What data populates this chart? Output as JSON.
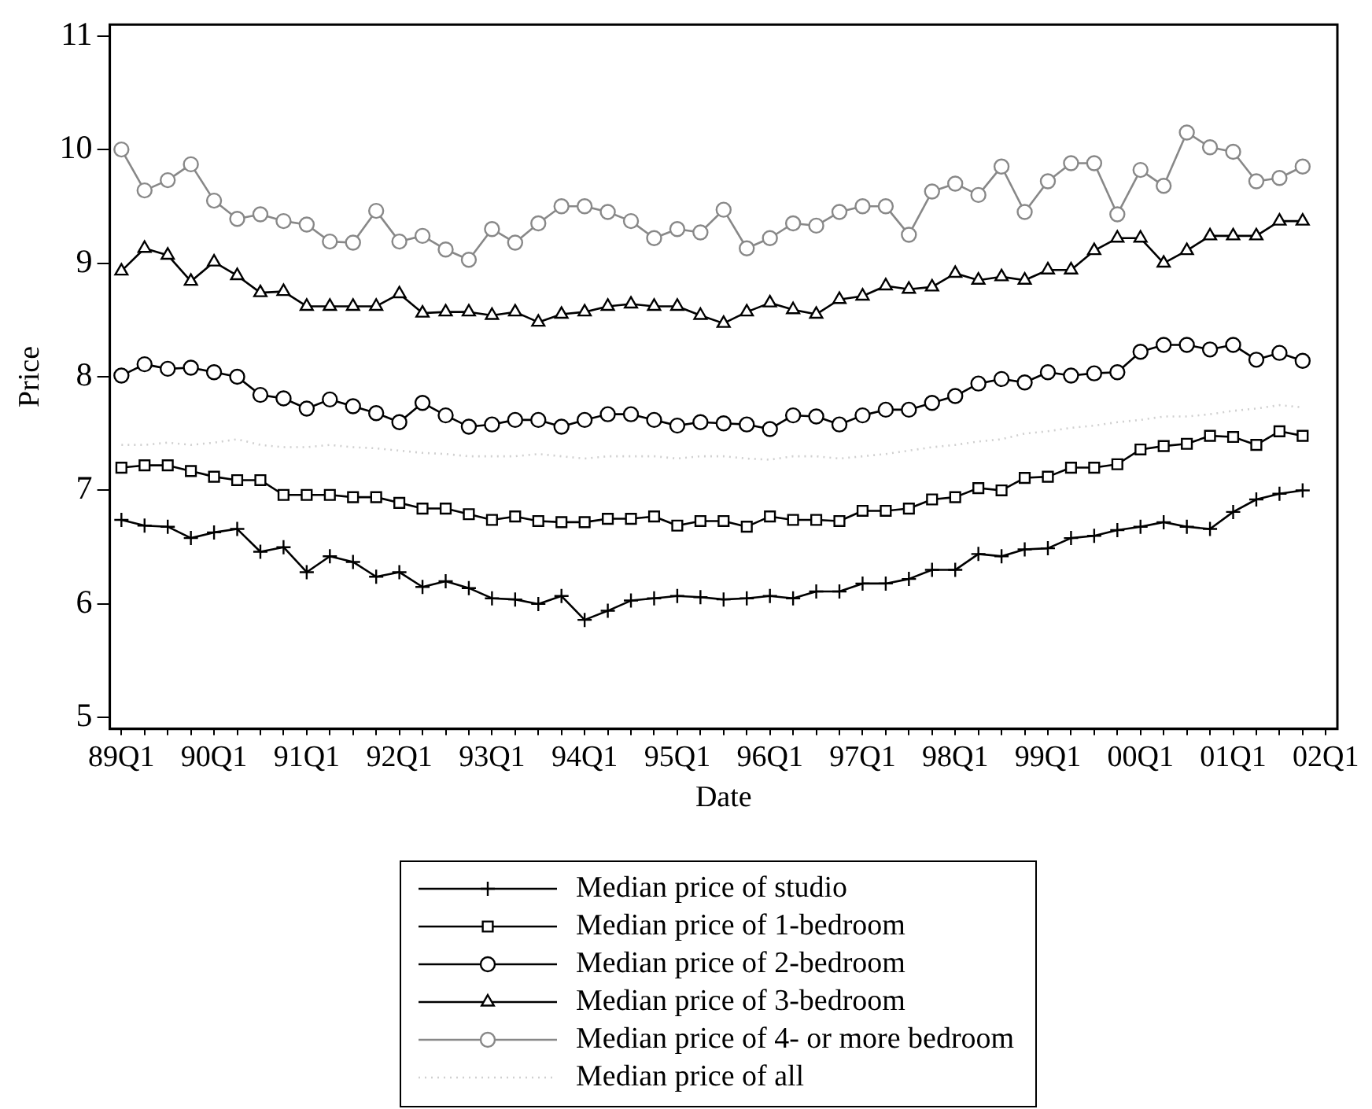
{
  "chart_data": {
    "type": "line",
    "xlabel": "Date",
    "ylabel": "Price",
    "legend": "bottom",
    "grid": false,
    "categories": [
      "89Q1",
      null,
      null,
      null,
      "90Q1",
      null,
      null,
      null,
      "91Q1",
      null,
      null,
      null,
      "92Q1",
      null,
      null,
      null,
      "93Q1",
      null,
      null,
      null,
      "94Q1",
      null,
      null,
      null,
      "95Q1",
      null,
      null,
      null,
      "96Q1",
      null,
      null,
      null,
      "97Q1",
      null,
      null,
      null,
      "98Q1",
      null,
      null,
      null,
      "99Q1",
      null,
      null,
      null,
      "00Q1",
      null,
      null,
      null,
      "01Q1",
      null,
      null,
      null,
      "02Q1"
    ],
    "ylim": [
      4.9,
      11.1
    ],
    "yticks": [
      5,
      6,
      7,
      8,
      9,
      10,
      11
    ],
    "series": [
      {
        "name": "Median price of studio",
        "color": "#000000",
        "marker": "cross",
        "line_style": "solid",
        "values": [
          6.74,
          6.69,
          6.68,
          6.58,
          6.63,
          6.66,
          6.46,
          6.5,
          6.28,
          6.42,
          6.37,
          6.24,
          6.28,
          6.15,
          6.2,
          6.14,
          6.05,
          6.04,
          6.0,
          6.07,
          5.86,
          5.94,
          6.03,
          6.05,
          6.07,
          6.06,
          6.04,
          6.05,
          6.07,
          6.05,
          6.11,
          6.11,
          6.18,
          6.18,
          6.22,
          6.3,
          6.3,
          6.44,
          6.42,
          6.48,
          6.49,
          6.58,
          6.6,
          6.65,
          6.68,
          6.72,
          6.68,
          6.66,
          6.81,
          6.92,
          6.97,
          7.0,
          null
        ]
      },
      {
        "name": "Median price of 1-bedroom",
        "color": "#000000",
        "marker": "square",
        "line_style": "solid",
        "values": [
          7.2,
          7.22,
          7.22,
          7.17,
          7.12,
          7.09,
          7.09,
          6.96,
          6.96,
          6.96,
          6.94,
          6.94,
          6.89,
          6.84,
          6.84,
          6.79,
          6.74,
          6.77,
          6.73,
          6.72,
          6.72,
          6.75,
          6.75,
          6.77,
          6.69,
          6.73,
          6.73,
          6.68,
          6.77,
          6.74,
          6.74,
          6.73,
          6.82,
          6.82,
          6.84,
          6.92,
          6.94,
          7.02,
          7.0,
          7.11,
          7.12,
          7.2,
          7.2,
          7.23,
          7.36,
          7.39,
          7.41,
          7.48,
          7.47,
          7.4,
          7.52,
          7.48,
          null
        ]
      },
      {
        "name": "Median price of 2-bedroom",
        "color": "#000000",
        "marker": "circle",
        "line_style": "solid",
        "values": [
          8.01,
          8.11,
          8.07,
          8.08,
          8.04,
          8.0,
          7.84,
          7.81,
          7.72,
          7.8,
          7.74,
          7.68,
          7.6,
          7.77,
          7.66,
          7.56,
          7.58,
          7.62,
          7.62,
          7.56,
          7.62,
          7.67,
          7.67,
          7.62,
          7.57,
          7.6,
          7.59,
          7.58,
          7.54,
          7.66,
          7.65,
          7.58,
          7.66,
          7.71,
          7.71,
          7.77,
          7.83,
          7.94,
          7.98,
          7.95,
          8.04,
          8.01,
          8.03,
          8.04,
          8.22,
          8.28,
          8.28,
          8.24,
          8.28,
          8.15,
          8.21,
          8.14,
          null
        ]
      },
      {
        "name": "Median price of 3-bedroom",
        "color": "#000000",
        "marker": "triangle",
        "line_style": "solid",
        "values": [
          8.93,
          9.13,
          9.07,
          8.84,
          9.01,
          8.89,
          8.74,
          8.75,
          8.62,
          8.62,
          8.62,
          8.62,
          8.73,
          8.56,
          8.57,
          8.57,
          8.54,
          8.57,
          8.48,
          8.55,
          8.57,
          8.62,
          8.64,
          8.62,
          8.62,
          8.54,
          8.47,
          8.57,
          8.65,
          8.59,
          8.55,
          8.68,
          8.71,
          8.8,
          8.77,
          8.79,
          8.91,
          8.85,
          8.88,
          8.85,
          8.94,
          8.94,
          9.11,
          9.22,
          9.22,
          9.0,
          9.11,
          9.24,
          9.24,
          9.24,
          9.37,
          9.37,
          null
        ]
      },
      {
        "name": "Median price of 4- or more bedroom",
        "color": "#888888",
        "marker": "circle",
        "line_style": "solid",
        "values": [
          10.0,
          9.64,
          9.73,
          9.87,
          9.55,
          9.39,
          9.43,
          9.37,
          9.34,
          9.19,
          9.18,
          9.46,
          9.19,
          9.24,
          9.12,
          9.03,
          9.3,
          9.18,
          9.35,
          9.5,
          9.5,
          9.45,
          9.37,
          9.22,
          9.3,
          9.27,
          9.47,
          9.13,
          9.22,
          9.35,
          9.33,
          9.45,
          9.5,
          9.5,
          9.25,
          9.63,
          9.7,
          9.6,
          9.85,
          9.45,
          9.72,
          9.88,
          9.88,
          9.43,
          9.82,
          9.68,
          10.15,
          10.02,
          9.98,
          9.72,
          9.75,
          9.85,
          null
        ]
      },
      {
        "name": "Median price of all",
        "color": "#d0d0d0",
        "marker": "none",
        "line_style": "dotted",
        "values": [
          7.4,
          7.4,
          7.42,
          7.4,
          7.42,
          7.45,
          7.4,
          7.38,
          7.38,
          7.4,
          7.38,
          7.37,
          7.35,
          7.33,
          7.32,
          7.3,
          7.3,
          7.3,
          7.32,
          7.3,
          7.28,
          7.3,
          7.3,
          7.3,
          7.28,
          7.3,
          7.3,
          7.28,
          7.27,
          7.3,
          7.3,
          7.28,
          7.3,
          7.32,
          7.35,
          7.38,
          7.4,
          7.43,
          7.45,
          7.5,
          7.52,
          7.55,
          7.57,
          7.6,
          7.62,
          7.65,
          7.65,
          7.67,
          7.7,
          7.72,
          7.75,
          7.73,
          null
        ]
      }
    ]
  }
}
